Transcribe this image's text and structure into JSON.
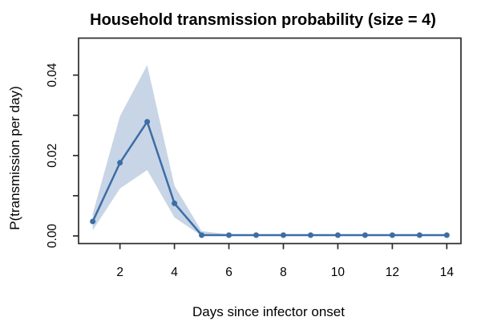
{
  "title": "Household transmission probability (size = 4)",
  "chart_data": {
    "type": "line",
    "title": "Household transmission probability (size = 4)",
    "xlabel": "Days since infector onset",
    "ylabel": "P(transmission per day)",
    "x": [
      1,
      2,
      3,
      4,
      5,
      6,
      7,
      8,
      9,
      10,
      11,
      12,
      13,
      14
    ],
    "values": [
      0.0036,
      0.0182,
      0.0284,
      0.0081,
      0.0002,
      0.0002,
      0.0002,
      0.0002,
      0.0002,
      0.0002,
      0.0002,
      0.0002,
      0.0002,
      0.0002
    ],
    "band": {
      "lower": [
        0.0014,
        0.0118,
        0.0164,
        0.0046,
        0.0,
        0.0,
        0.0,
        0.0,
        0.0,
        0.0,
        0.0,
        0.0,
        0.0,
        0.0
      ],
      "upper": [
        0.0055,
        0.0298,
        0.0425,
        0.0125,
        0.0012,
        0.0004,
        0.0004,
        0.0004,
        0.0004,
        0.0004,
        0.0004,
        0.0004,
        0.0004,
        0.0004
      ]
    },
    "x_ticks": [
      2,
      4,
      6,
      8,
      10,
      12,
      14
    ],
    "y_ticks": [
      0,
      0.01,
      0.02,
      0.03,
      0.04
    ],
    "y_tick_labels": [
      "0.00",
      "",
      "0.02",
      "",
      "0.04"
    ],
    "xlim": [
      0.48,
      14.52
    ],
    "ylim": [
      -0.0019,
      0.0492
    ],
    "grid": false,
    "legend": "none",
    "colors": {
      "line": "#3C6DA6",
      "point": "#3C6DA6",
      "band": "#C8D5E6",
      "axis": "#2B2B2B",
      "text": "#000000"
    }
  }
}
